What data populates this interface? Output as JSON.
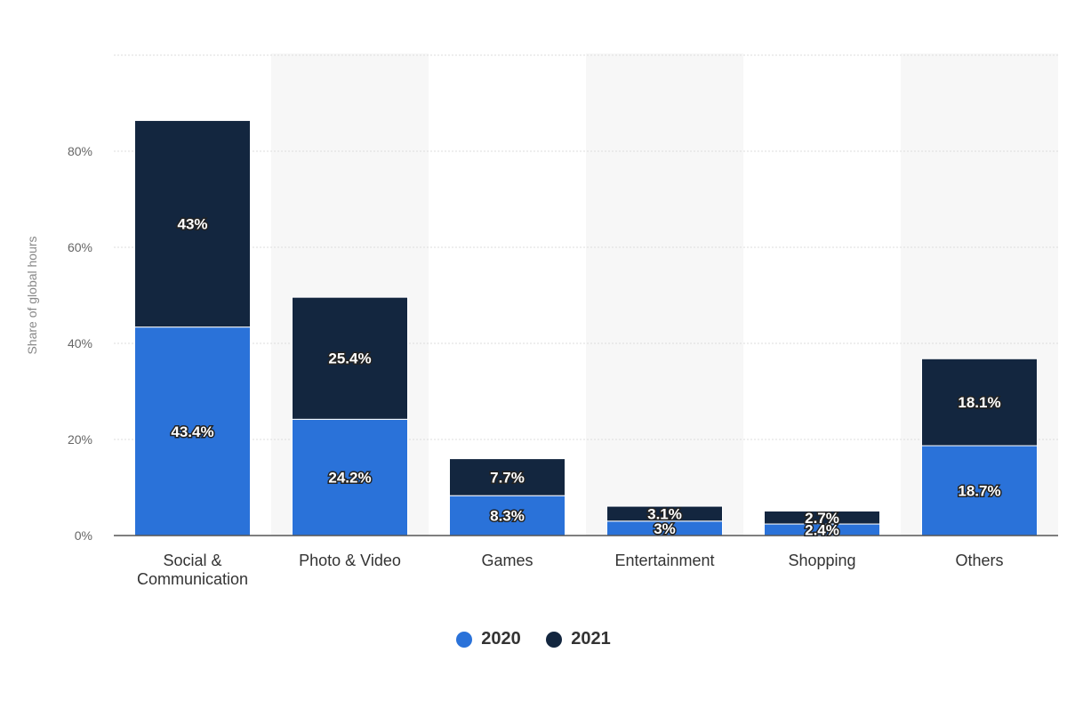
{
  "chart_data": {
    "type": "bar",
    "stacked": true,
    "categories": [
      "Social & Communication",
      "Photo & Video",
      "Games",
      "Entertainment",
      "Shopping",
      "Others"
    ],
    "series": [
      {
        "name": "2020",
        "values": [
          43.4,
          24.2,
          8.3,
          3,
          2.4,
          18.7
        ],
        "labels": [
          "43.4%",
          "24.2%",
          "8.3%",
          "3%",
          "2.4%",
          "18.7%"
        ],
        "color": "#2a72d9"
      },
      {
        "name": "2021",
        "values": [
          43,
          25.4,
          7.7,
          3.1,
          2.7,
          18.1
        ],
        "labels": [
          "43%",
          "25.4%",
          "7.7%",
          "3.1%",
          "2.7%",
          "18.1%"
        ],
        "color": "#13263f"
      }
    ],
    "ylabel": "Share of global hours",
    "xlabel": "",
    "ylim": [
      0,
      100
    ],
    "yticks": [
      0,
      20,
      40,
      60,
      80
    ],
    "ytick_labels": [
      "0%",
      "20%",
      "40%",
      "60%",
      "80%"
    ],
    "grid": true,
    "legend_position": "bottom"
  }
}
